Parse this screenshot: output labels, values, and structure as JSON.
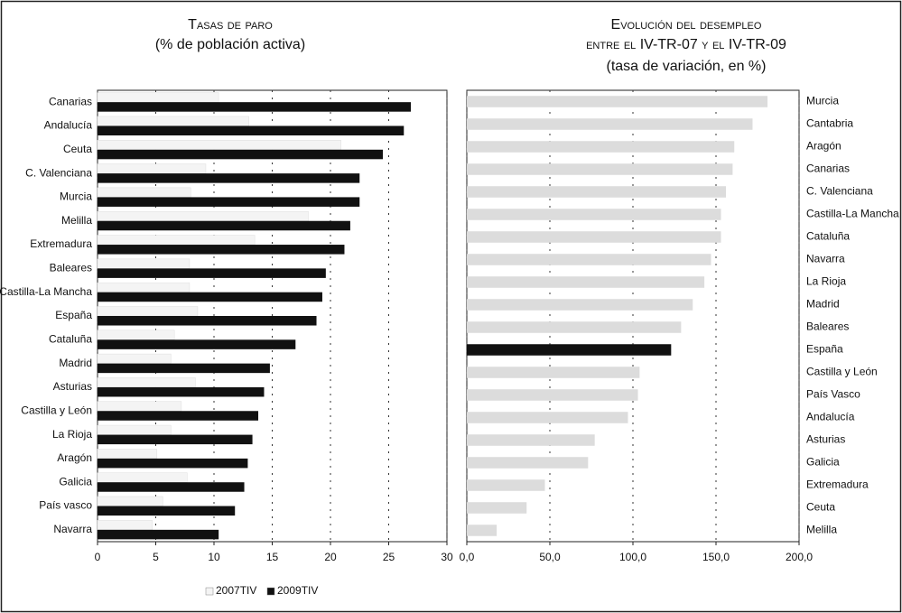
{
  "chart_data": [
    {
      "type": "hbar",
      "title": "Tasas de paro",
      "subtitle": "(% de población activa)",
      "categories": [
        "Canarias",
        "Andalucía",
        "Ceuta",
        "C. Valenciana",
        "Murcia",
        "Melilla",
        "Extremadura",
        "Baleares",
        "Castilla-La Mancha",
        "España",
        "Cataluña",
        "Madrid",
        "Asturias",
        "Castilla y León",
        "La Rioja",
        "Aragón",
        "Galicia",
        "País vasco",
        "Navarra"
      ],
      "series": [
        {
          "name": "2007TIV",
          "color": "#f4f4f4",
          "values": [
            10.4,
            13.0,
            20.9,
            9.3,
            8.0,
            18.1,
            13.5,
            7.9,
            7.9,
            8.6,
            6.6,
            6.3,
            8.4,
            7.2,
            6.3,
            5.1,
            7.7,
            5.6,
            4.7
          ]
        },
        {
          "name": "2009TIV",
          "color": "#111111",
          "values": [
            26.9,
            26.3,
            24.5,
            22.5,
            22.5,
            21.7,
            21.2,
            19.6,
            19.3,
            18.8,
            17.0,
            14.8,
            14.3,
            13.8,
            13.3,
            12.9,
            12.6,
            11.8,
            10.4
          ]
        }
      ],
      "xlim": [
        0,
        30
      ],
      "xticks": [
        0,
        5,
        10,
        15,
        20,
        25,
        30
      ],
      "grid": true,
      "legend": "bottom",
      "label_side": "left"
    },
    {
      "type": "hbar",
      "title": "Evolución del desempleo",
      "subtitle": [
        "entre el IV-TR-07 y el IV-TR-09",
        "(tasa de variación, en %)"
      ],
      "categories": [
        "Murcia",
        "Cantabria",
        "Aragón",
        "Canarias",
        "C. Valenciana",
        "Castilla-La Mancha",
        "Cataluña",
        "Navarra",
        "La Rioja",
        "Madrid",
        "Baleares",
        "España",
        "Castilla y León",
        "País Vasco",
        "Andalucía",
        "Asturias",
        "Galicia",
        "Extremadura",
        "Ceuta",
        "Melilla"
      ],
      "values": [
        181,
        172,
        161,
        160,
        156,
        153,
        153,
        147,
        143,
        136,
        129,
        123,
        104,
        103,
        97,
        77,
        73,
        47,
        36,
        18
      ],
      "colors": [
        "#dcdcdc",
        "#dcdcdc",
        "#dcdcdc",
        "#dcdcdc",
        "#dcdcdc",
        "#dcdcdc",
        "#dcdcdc",
        "#dcdcdc",
        "#dcdcdc",
        "#dcdcdc",
        "#dcdcdc",
        "#111111",
        "#dcdcdc",
        "#dcdcdc",
        "#dcdcdc",
        "#dcdcdc",
        "#dcdcdc",
        "#dcdcdc",
        "#dcdcdc",
        "#dcdcdc"
      ],
      "xlim": [
        0,
        200
      ],
      "xticks": [
        {
          "value": 0,
          "label": "0,0"
        },
        {
          "value": 50,
          "label": "50,0"
        },
        {
          "value": 100,
          "label": "100,0"
        },
        {
          "value": 150,
          "label": "150,0"
        },
        {
          "value": 200,
          "label": "200,0"
        }
      ],
      "grid": true,
      "label_side": "right"
    }
  ]
}
